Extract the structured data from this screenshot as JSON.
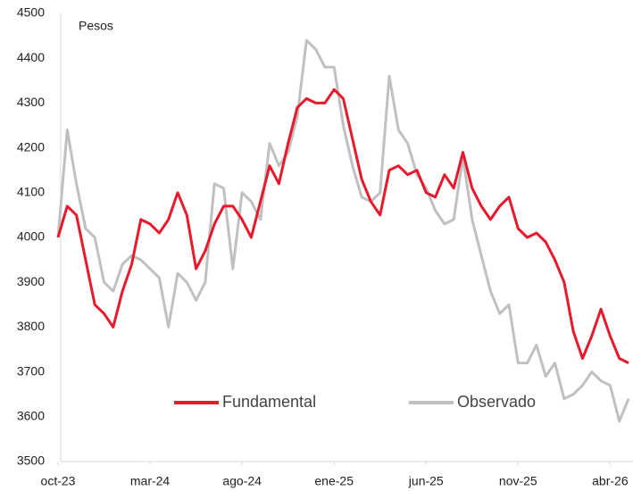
{
  "chart_data": {
    "type": "line",
    "annotation": "Pesos",
    "x": [
      0,
      0.5,
      1,
      1.5,
      2,
      2.5,
      3,
      3.5,
      4,
      4.5,
      5,
      5.5,
      6,
      6.5,
      7,
      7.5,
      8,
      8.5,
      9,
      9.5,
      10,
      10.5,
      11,
      11.5,
      12,
      12.5,
      13,
      13.5,
      14,
      14.5,
      15,
      15.5,
      16,
      16.5,
      17,
      17.5,
      18,
      18.5,
      19,
      19.5,
      20,
      20.5,
      21,
      21.5,
      22,
      22.5,
      23,
      23.5,
      24,
      24.5,
      25,
      25.5,
      26,
      26.5,
      27,
      27.5,
      28,
      28.5,
      29,
      29.5,
      30,
      30.5,
      31
    ],
    "xlim": [
      0,
      31
    ],
    "xticks": [
      {
        "value": 0,
        "label": "oct-23"
      },
      {
        "value": 5,
        "label": "mar-24"
      },
      {
        "value": 10,
        "label": "ago-24"
      },
      {
        "value": 15,
        "label": "ene-25"
      },
      {
        "value": 20,
        "label": "jun-25"
      },
      {
        "value": 25,
        "label": "nov-25"
      },
      {
        "value": 30,
        "label": "abr-26"
      }
    ],
    "ylim": [
      3500,
      4500
    ],
    "yticks": [
      3500,
      3600,
      3700,
      3800,
      3900,
      4000,
      4100,
      4200,
      4300,
      4400,
      4500
    ],
    "grid": false,
    "series": [
      {
        "name": "Fundamental",
        "color": "#e8192c",
        "values": [
          4000,
          4070,
          4050,
          3950,
          3850,
          3830,
          3800,
          3880,
          3940,
          4040,
          4030,
          4010,
          4040,
          4100,
          4050,
          3930,
          3970,
          4030,
          4070,
          4070,
          4040,
          4000,
          4080,
          4160,
          4120,
          4210,
          4290,
          4310,
          4300,
          4300,
          4330,
          4310,
          4220,
          4130,
          4080,
          4050,
          4150,
          4160,
          4140,
          4150,
          4100,
          4090,
          4140,
          4110,
          4190,
          4110,
          4070,
          4040,
          4070,
          4090,
          4020,
          4000,
          4010,
          3990,
          3950,
          3900,
          3790,
          3730,
          3780,
          3840,
          3780,
          3730,
          3720
        ]
      },
      {
        "name": "Observado",
        "color": "#c0c0c0",
        "values": [
          4000,
          4240,
          4120,
          4020,
          4000,
          3900,
          3880,
          3940,
          3960,
          3950,
          3930,
          3910,
          3800,
          3920,
          3900,
          3860,
          3900,
          4120,
          4110,
          3930,
          4100,
          4080,
          4040,
          4210,
          4160,
          4190,
          4270,
          4440,
          4420,
          4380,
          4380,
          4250,
          4160,
          4090,
          4080,
          4100,
          4360,
          4240,
          4210,
          4140,
          4110,
          4060,
          4030,
          4040,
          4180,
          4040,
          3960,
          3880,
          3830,
          3850,
          3720,
          3720,
          3760,
          3690,
          3720,
          3640,
          3650,
          3670,
          3700,
          3680,
          3670,
          3590,
          3640
        ]
      }
    ]
  }
}
